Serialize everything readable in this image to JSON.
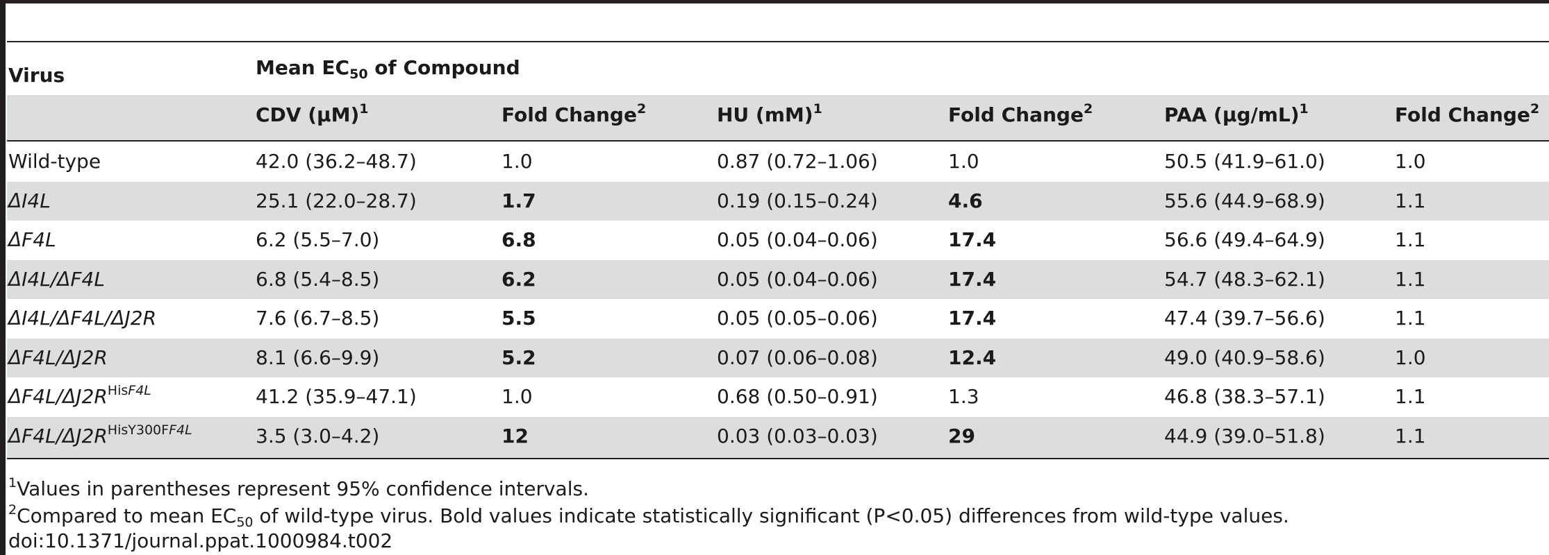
{
  "table": {
    "header": {
      "virus": "Virus",
      "mean_ec": "Mean EC",
      "mean_ec_sub": "50",
      "mean_ec_tail": " of Compound",
      "col1": "CDV (μM)",
      "col1_sup": "1",
      "col2": "Fold Change",
      "col2_sup": "2",
      "col3": "HU (mM)",
      "col3_sup": "1",
      "col4": "Fold Change",
      "col4_sup": "2",
      "col5": "PAA (μg/mL)",
      "col5_sup": "1",
      "col6": "Fold Change",
      "col6_sup": "2"
    },
    "rows": [
      {
        "virus": "Wild-type",
        "cdv": "42.0 (36.2–48.7)",
        "fc1": "1.0",
        "hu": "0.87 (0.72–1.06)",
        "fc2": "1.0",
        "paa": "50.5 (41.9–61.0)",
        "fc3": "1.0"
      },
      {
        "virus": "ΔI4L",
        "cdv": "25.1 (22.0–28.7)",
        "fc1": "1.7",
        "hu": "0.19 (0.15–0.24)",
        "fc2": "4.6",
        "paa": "55.6 (44.9–68.9)",
        "fc3": "1.1"
      },
      {
        "virus": "ΔF4L",
        "cdv": "6.2 (5.5–7.0)",
        "fc1": "6.8",
        "hu": "0.05 (0.04–0.06)",
        "fc2": "17.4",
        "paa": "56.6 (49.4–64.9)",
        "fc3": "1.1"
      },
      {
        "virus": "ΔI4L/ΔF4L",
        "cdv": "6.8 (5.4–8.5)",
        "fc1": "6.2",
        "hu": "0.05 (0.04–0.06)",
        "fc2": "17.4",
        "paa": "54.7 (48.3–62.1)",
        "fc3": "1.1"
      },
      {
        "virus": "ΔI4L/ΔF4L/ΔJ2R",
        "cdv": "7.6 (6.7–8.5)",
        "fc1": "5.5",
        "hu": "0.05 (0.05–0.06)",
        "fc2": "17.4",
        "paa": "47.4 (39.7–56.6)",
        "fc3": "1.1"
      },
      {
        "virus": "ΔF4L/ΔJ2R",
        "cdv": "8.1 (6.6–9.9)",
        "fc1": "5.2",
        "hu": "0.07 (0.06–0.08)",
        "fc2": "12.4",
        "paa": "49.0 (40.9–58.6)",
        "fc3": "1.0"
      },
      {
        "virus": "ΔF4L/ΔJ2R",
        "virus_sup_a": "His",
        "virus_sup_b": "F4L",
        "cdv": "41.2 (35.9–47.1)",
        "fc1": "1.0",
        "hu": "0.68 (0.50–0.91)",
        "fc2": "1.3",
        "paa": "46.8 (38.3–57.1)",
        "fc3": "1.1"
      },
      {
        "virus": "ΔF4L/ΔJ2R",
        "virus_sup_a": "HisY300F",
        "virus_sup_b": "F4L",
        "cdv": "3.5 (3.0–4.2)",
        "fc1": "12",
        "hu": "0.03 (0.03–0.03)",
        "fc2": "29",
        "paa": "44.9 (39.0–51.8)",
        "fc3": "1.1"
      }
    ]
  },
  "footnotes": {
    "fn1_mark": "1",
    "fn1": "Values in parentheses represent 95% confidence intervals.",
    "fn2_mark": "2",
    "fn2_a": "Compared to mean EC",
    "fn2_sub": "50",
    "fn2_b": " of wild-type virus. Bold values indicate statistically significant (P",
    "fn2_lt": "<",
    "fn2_c": "0.05) differences from wild-type values.",
    "doi": "doi:10.1371/journal.ppat.1000984.t002"
  }
}
